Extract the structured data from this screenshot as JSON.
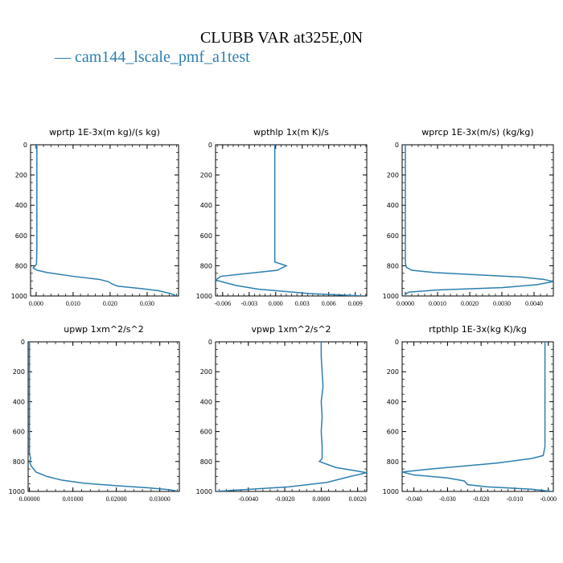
{
  "title": "CLUBB VAR at325E,0N",
  "legend": {
    "dash": "—",
    "label": "cam144_lscale_pmf_a1test",
    "color": "#2b7fb0"
  },
  "chart_data": [
    {
      "type": "line",
      "title": "wprtp  1E-3x(m kg)/(s kg)",
      "xlim": [
        -0.0015,
        0.0385
      ],
      "ylim": [
        1000,
        0
      ],
      "yticks": [
        0,
        200,
        400,
        600,
        800,
        1000
      ],
      "xticks": [
        0.0,
        0.01,
        0.02,
        0.03
      ],
      "xtick_labels": [
        "0.000",
        "0.010",
        "0.020",
        "0.030"
      ],
      "series": [
        {
          "x": [
            0.0002,
            0.0002,
            0.0002,
            0.0002,
            0.0002,
            0.0001,
            -0.0008,
            0.0003,
            0.003,
            0.01,
            0.017,
            0.0195,
            0.0205,
            0.022,
            0.028,
            0.033,
            0.0365,
            0.038
          ],
          "y": [
            0,
            100,
            300,
            500,
            700,
            790,
            815,
            830,
            845,
            870,
            890,
            905,
            920,
            935,
            950,
            965,
            985,
            1000
          ]
        }
      ]
    },
    {
      "type": "line",
      "title": "wpthlp  1x(m K)/s",
      "xlim": [
        -0.0068,
        0.0103
      ],
      "ylim": [
        1000,
        0
      ],
      "yticks": [
        0,
        200,
        400,
        600,
        800,
        1000
      ],
      "xticks": [
        -0.006,
        -0.003,
        0.0,
        0.003,
        0.006,
        0.009
      ],
      "xtick_labels": [
        "-0.006",
        "-0.003",
        "0.000",
        "0.003",
        "0.006",
        "0.009"
      ],
      "series": [
        {
          "x": [
            -0.0001,
            -0.0001,
            -0.0001,
            -0.0001,
            -0.0001,
            -0.0001,
            0.0012,
            0.0002,
            -0.003,
            -0.0062,
            -0.0068,
            -0.0045,
            -0.002,
            0.004,
            0.01
          ],
          "y": [
            0,
            200,
            400,
            600,
            700,
            775,
            800,
            830,
            850,
            870,
            895,
            930,
            955,
            985,
            1000
          ]
        }
      ]
    },
    {
      "type": "line",
      "title": "wprcp  1E-3x(m/s) (kg/kg)",
      "xlim": [
        -0.0001,
        0.0046
      ],
      "ylim": [
        1000,
        0
      ],
      "yticks": [
        0,
        200,
        400,
        600,
        800,
        1000
      ],
      "xticks": [
        0.0,
        0.001,
        0.002,
        0.003,
        0.004
      ],
      "xtick_labels": [
        "0.0000",
        "0.0010",
        "0.0020",
        "0.0030",
        "0.0040"
      ],
      "series": [
        {
          "x": [
            0.0,
            0.0,
            0.0,
            0.0,
            0.0,
            3e-05,
            0.0002,
            0.0009,
            0.0022,
            0.0036,
            0.0043,
            0.0046,
            0.0041,
            0.003,
            0.001,
            0.0001,
            0.0,
            0.0
          ],
          "y": [
            0,
            200,
            400,
            600,
            780,
            810,
            830,
            845,
            860,
            875,
            890,
            905,
            925,
            945,
            960,
            975,
            990,
            1000
          ]
        }
      ]
    },
    {
      "type": "line",
      "title": "upwp  1xm^2/s^2",
      "xlim": [
        -0.0003,
        0.0345
      ],
      "ylim": [
        1000,
        0
      ],
      "yticks": [
        0,
        200,
        400,
        600,
        800,
        1000
      ],
      "xticks": [
        0.0,
        0.01,
        0.02,
        0.03
      ],
      "xtick_labels": [
        "0.00000",
        "0.01000",
        "0.02000",
        "0.03000"
      ],
      "series": [
        {
          "x": [
            0.0,
            0.0,
            0.0,
            0.0,
            0.0,
            0.0003,
            0.0,
            0.0004,
            0.0015,
            0.004,
            0.0075,
            0.0125,
            0.02,
            0.027,
            0.032,
            0.0335,
            0.034
          ],
          "y": [
            0,
            200,
            400,
            600,
            750,
            780,
            800,
            830,
            870,
            900,
            925,
            945,
            962,
            975,
            988,
            995,
            1000
          ]
        }
      ]
    },
    {
      "type": "line",
      "title": "vpwp  1xm^2/s^2",
      "xlim": [
        -0.0058,
        0.0025
      ],
      "ylim": [
        1000,
        0
      ],
      "yticks": [
        0,
        200,
        400,
        600,
        800,
        1000
      ],
      "xticks": [
        -0.004,
        -0.002,
        0.0,
        0.002
      ],
      "xtick_labels": [
        "-0.0040",
        "-0.0020",
        "0.0000",
        "0.0020"
      ],
      "series": [
        {
          "x": [
            0.0,
            0.0,
            5e-05,
            0.0001,
            0.0,
            5e-05,
            0.0,
            5e-05,
            5e-05,
            -0.0001,
            0.0008,
            0.0018,
            0.0025,
            0.0016,
            0.0003,
            -0.0018,
            -0.0045,
            -0.0058
          ],
          "y": [
            0,
            100,
            200,
            300,
            400,
            500,
            600,
            700,
            780,
            800,
            840,
            860,
            875,
            900,
            940,
            970,
            990,
            1000
          ]
        }
      ]
    },
    {
      "type": "line",
      "title": "rtpthlp  1E-3x(kg K)/kg",
      "xlim": [
        -0.0435,
        0.0015
      ],
      "ylim": [
        1000,
        0
      ],
      "yticks": [
        0,
        200,
        400,
        600,
        800,
        1000
      ],
      "xticks": [
        -0.04,
        -0.03,
        -0.02,
        -0.01,
        0.0
      ],
      "xtick_labels": [
        "-0.040",
        "-0.030",
        "-0.020",
        "-0.010",
        "-0.000"
      ],
      "series": [
        {
          "x": [
            -0.001,
            -0.001,
            -0.001,
            -0.001,
            -0.001,
            -0.0015,
            -0.005,
            -0.015,
            -0.035,
            -0.0435,
            -0.04,
            -0.03,
            -0.025,
            -0.024,
            -0.018,
            -0.005,
            0.001
          ],
          "y": [
            0,
            200,
            400,
            600,
            700,
            760,
            780,
            810,
            850,
            870,
            890,
            910,
            930,
            955,
            970,
            985,
            1000
          ]
        }
      ]
    }
  ]
}
